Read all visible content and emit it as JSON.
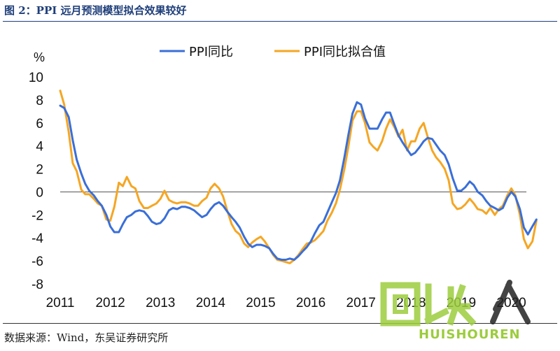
{
  "figure": {
    "title": "图 2：PPI 远月预测模型拟合效果较好",
    "source": "数据来源：Wind，东吴证券研究所"
  },
  "watermark": {
    "text": "HUISHOUREN",
    "glyph_label": "回收人"
  },
  "chart_data": {
    "type": "line",
    "y_unit": "%",
    "ylim": [
      -8,
      10
    ],
    "yticks": [
      10,
      8,
      6,
      4,
      2,
      0,
      -2,
      -4,
      -6,
      -8
    ],
    "xlim": [
      2011.0,
      2020.3
    ],
    "xticks": [
      "2011",
      "2012",
      "2013",
      "2014",
      "2015",
      "2016",
      "2017",
      "2018",
      "2019",
      "2020"
    ],
    "legend_position": "top",
    "grid": false,
    "series": [
      {
        "name": "PPI同比",
        "color": "#3a6fd8",
        "points": [
          [
            2011.0,
            7.5
          ],
          [
            2011.08,
            7.3
          ],
          [
            2011.17,
            6.5
          ],
          [
            2011.25,
            4.5
          ],
          [
            2011.33,
            2.8
          ],
          [
            2011.42,
            1.6
          ],
          [
            2011.5,
            0.7
          ],
          [
            2011.58,
            0.1
          ],
          [
            2011.67,
            -0.3
          ],
          [
            2011.75,
            -0.8
          ],
          [
            2011.83,
            -1.2
          ],
          [
            2011.92,
            -2.0
          ],
          [
            2012.0,
            -3.0
          ],
          [
            2012.08,
            -3.5
          ],
          [
            2012.17,
            -3.5
          ],
          [
            2012.25,
            -2.8
          ],
          [
            2012.33,
            -2.2
          ],
          [
            2012.42,
            -2.0
          ],
          [
            2012.5,
            -1.7
          ],
          [
            2012.58,
            -1.6
          ],
          [
            2012.67,
            -1.7
          ],
          [
            2012.75,
            -2.1
          ],
          [
            2012.83,
            -2.6
          ],
          [
            2012.92,
            -2.8
          ],
          [
            2013.0,
            -2.7
          ],
          [
            2013.08,
            -2.3
          ],
          [
            2013.17,
            -1.6
          ],
          [
            2013.25,
            -1.4
          ],
          [
            2013.33,
            -1.5
          ],
          [
            2013.42,
            -1.3
          ],
          [
            2013.5,
            -1.3
          ],
          [
            2013.58,
            -1.4
          ],
          [
            2013.67,
            -1.6
          ],
          [
            2013.75,
            -1.9
          ],
          [
            2013.83,
            -2.2
          ],
          [
            2013.92,
            -2.0
          ],
          [
            2014.0,
            -1.5
          ],
          [
            2014.08,
            -1.1
          ],
          [
            2014.17,
            -0.9
          ],
          [
            2014.25,
            -1.2
          ],
          [
            2014.33,
            -1.7
          ],
          [
            2014.42,
            -2.2
          ],
          [
            2014.5,
            -2.6
          ],
          [
            2014.58,
            -3.1
          ],
          [
            2014.67,
            -3.9
          ],
          [
            2014.75,
            -4.5
          ],
          [
            2014.83,
            -4.8
          ],
          [
            2014.92,
            -4.6
          ],
          [
            2015.0,
            -4.6
          ],
          [
            2015.08,
            -4.7
          ],
          [
            2015.17,
            -4.9
          ],
          [
            2015.25,
            -5.4
          ],
          [
            2015.33,
            -5.8
          ],
          [
            2015.42,
            -5.9
          ],
          [
            2015.5,
            -5.9
          ],
          [
            2015.58,
            -5.8
          ],
          [
            2015.67,
            -5.9
          ],
          [
            2015.75,
            -5.6
          ],
          [
            2015.83,
            -5.2
          ],
          [
            2015.92,
            -4.8
          ],
          [
            2016.0,
            -4.3
          ],
          [
            2016.08,
            -3.6
          ],
          [
            2016.17,
            -2.9
          ],
          [
            2016.25,
            -2.6
          ],
          [
            2016.33,
            -1.8
          ],
          [
            2016.42,
            -0.9
          ],
          [
            2016.5,
            -0.1
          ],
          [
            2016.58,
            1.0
          ],
          [
            2016.67,
            3.0
          ],
          [
            2016.75,
            5.0
          ],
          [
            2016.83,
            6.8
          ],
          [
            2016.92,
            7.8
          ],
          [
            2017.0,
            7.6
          ],
          [
            2017.08,
            6.4
          ],
          [
            2017.17,
            5.5
          ],
          [
            2017.25,
            5.5
          ],
          [
            2017.33,
            5.5
          ],
          [
            2017.42,
            6.3
          ],
          [
            2017.5,
            6.9
          ],
          [
            2017.58,
            6.9
          ],
          [
            2017.67,
            5.8
          ],
          [
            2017.75,
            4.9
          ],
          [
            2017.83,
            4.3
          ],
          [
            2017.92,
            3.7
          ],
          [
            2018.0,
            3.2
          ],
          [
            2018.08,
            3.4
          ],
          [
            2018.17,
            3.9
          ],
          [
            2018.25,
            4.4
          ],
          [
            2018.33,
            4.7
          ],
          [
            2018.42,
            4.6
          ],
          [
            2018.5,
            4.1
          ],
          [
            2018.58,
            3.6
          ],
          [
            2018.67,
            3.2
          ],
          [
            2018.75,
            2.4
          ],
          [
            2018.83,
            1.2
          ],
          [
            2018.92,
            0.1
          ],
          [
            2019.0,
            0.1
          ],
          [
            2019.08,
            0.4
          ],
          [
            2019.17,
            0.9
          ],
          [
            2019.25,
            0.6
          ],
          [
            2019.33,
            0.0
          ],
          [
            2019.42,
            -0.3
          ],
          [
            2019.5,
            -0.8
          ],
          [
            2019.58,
            -1.2
          ],
          [
            2019.67,
            -1.4
          ],
          [
            2019.75,
            -1.6
          ],
          [
            2019.83,
            -1.4
          ],
          [
            2019.92,
            -0.5
          ],
          [
            2020.0,
            0.0
          ],
          [
            2020.08,
            -0.4
          ],
          [
            2020.17,
            -1.5
          ],
          [
            2020.25,
            -3.1
          ],
          [
            2020.33,
            -3.7
          ],
          [
            2020.42,
            -3.0
          ],
          [
            2020.5,
            -2.4
          ]
        ]
      },
      {
        "name": "PPI同比拟合值",
        "color": "#f5a623",
        "points": [
          [
            2011.0,
            8.8
          ],
          [
            2011.08,
            7.6
          ],
          [
            2011.17,
            5.2
          ],
          [
            2011.25,
            2.5
          ],
          [
            2011.33,
            1.8
          ],
          [
            2011.42,
            0.2
          ],
          [
            2011.5,
            -0.2
          ],
          [
            2011.58,
            -0.2
          ],
          [
            2011.67,
            -0.6
          ],
          [
            2011.75,
            -1.0
          ],
          [
            2011.83,
            -1.2
          ],
          [
            2011.92,
            -2.4
          ],
          [
            2012.0,
            -2.5
          ],
          [
            2012.08,
            -1.3
          ],
          [
            2012.17,
            0.8
          ],
          [
            2012.25,
            0.5
          ],
          [
            2012.33,
            1.3
          ],
          [
            2012.42,
            0.5
          ],
          [
            2012.5,
            0.3
          ],
          [
            2012.58,
            -0.8
          ],
          [
            2012.67,
            -1.4
          ],
          [
            2012.75,
            -1.4
          ],
          [
            2012.83,
            -1.2
          ],
          [
            2012.92,
            -1.0
          ],
          [
            2013.0,
            -0.6
          ],
          [
            2013.08,
            0.1
          ],
          [
            2013.17,
            -0.7
          ],
          [
            2013.25,
            -0.9
          ],
          [
            2013.33,
            -1.0
          ],
          [
            2013.42,
            -0.9
          ],
          [
            2013.5,
            -0.9
          ],
          [
            2013.58,
            -1.0
          ],
          [
            2013.67,
            -1.2
          ],
          [
            2013.75,
            -1.2
          ],
          [
            2013.83,
            -0.8
          ],
          [
            2013.92,
            -0.5
          ],
          [
            2014.0,
            0.3
          ],
          [
            2014.08,
            0.7
          ],
          [
            2014.17,
            0.3
          ],
          [
            2014.25,
            -0.4
          ],
          [
            2014.33,
            -1.6
          ],
          [
            2014.42,
            -2.8
          ],
          [
            2014.5,
            -3.4
          ],
          [
            2014.58,
            -3.7
          ],
          [
            2014.67,
            -4.5
          ],
          [
            2014.75,
            -4.8
          ],
          [
            2014.83,
            -4.4
          ],
          [
            2014.92,
            -4.1
          ],
          [
            2015.0,
            -3.9
          ],
          [
            2015.08,
            -4.3
          ],
          [
            2015.17,
            -4.9
          ],
          [
            2015.25,
            -5.5
          ],
          [
            2015.33,
            -5.9
          ],
          [
            2015.42,
            -6.0
          ],
          [
            2015.5,
            -6.1
          ],
          [
            2015.58,
            -6.2
          ],
          [
            2015.67,
            -5.9
          ],
          [
            2015.75,
            -5.5
          ],
          [
            2015.83,
            -5.0
          ],
          [
            2015.92,
            -4.5
          ],
          [
            2016.0,
            -4.4
          ],
          [
            2016.08,
            -4.2
          ],
          [
            2016.17,
            -3.8
          ],
          [
            2016.25,
            -3.4
          ],
          [
            2016.33,
            -2.5
          ],
          [
            2016.42,
            -1.8
          ],
          [
            2016.5,
            -1.0
          ],
          [
            2016.58,
            0.2
          ],
          [
            2016.67,
            2.0
          ],
          [
            2016.75,
            4.0
          ],
          [
            2016.83,
            6.2
          ],
          [
            2016.92,
            7.0
          ],
          [
            2017.0,
            7.0
          ],
          [
            2017.08,
            6.0
          ],
          [
            2017.17,
            4.3
          ],
          [
            2017.25,
            3.9
          ],
          [
            2017.33,
            3.6
          ],
          [
            2017.42,
            4.4
          ],
          [
            2017.5,
            5.5
          ],
          [
            2017.58,
            6.3
          ],
          [
            2017.67,
            5.6
          ],
          [
            2017.75,
            4.8
          ],
          [
            2017.83,
            5.4
          ],
          [
            2017.92,
            3.6
          ],
          [
            2018.0,
            4.4
          ],
          [
            2018.08,
            4.4
          ],
          [
            2018.17,
            5.5
          ],
          [
            2018.25,
            6.0
          ],
          [
            2018.33,
            4.8
          ],
          [
            2018.42,
            3.6
          ],
          [
            2018.5,
            3.0
          ],
          [
            2018.58,
            2.6
          ],
          [
            2018.67,
            2.0
          ],
          [
            2018.75,
            1.0
          ],
          [
            2018.83,
            -1.0
          ],
          [
            2018.92,
            -1.5
          ],
          [
            2019.0,
            -1.4
          ],
          [
            2019.08,
            -1.1
          ],
          [
            2019.17,
            -0.6
          ],
          [
            2019.25,
            -1.0
          ],
          [
            2019.33,
            -1.5
          ],
          [
            2019.42,
            -1.6
          ],
          [
            2019.5,
            -1.9
          ],
          [
            2019.58,
            -1.4
          ],
          [
            2019.67,
            -2.0
          ],
          [
            2019.75,
            -1.5
          ],
          [
            2019.83,
            -1.2
          ],
          [
            2019.92,
            -0.3
          ],
          [
            2020.0,
            0.3
          ],
          [
            2020.08,
            -0.3
          ],
          [
            2020.17,
            -2.0
          ],
          [
            2020.25,
            -4.1
          ],
          [
            2020.33,
            -4.9
          ],
          [
            2020.42,
            -4.3
          ],
          [
            2020.5,
            -2.5
          ]
        ]
      }
    ]
  }
}
